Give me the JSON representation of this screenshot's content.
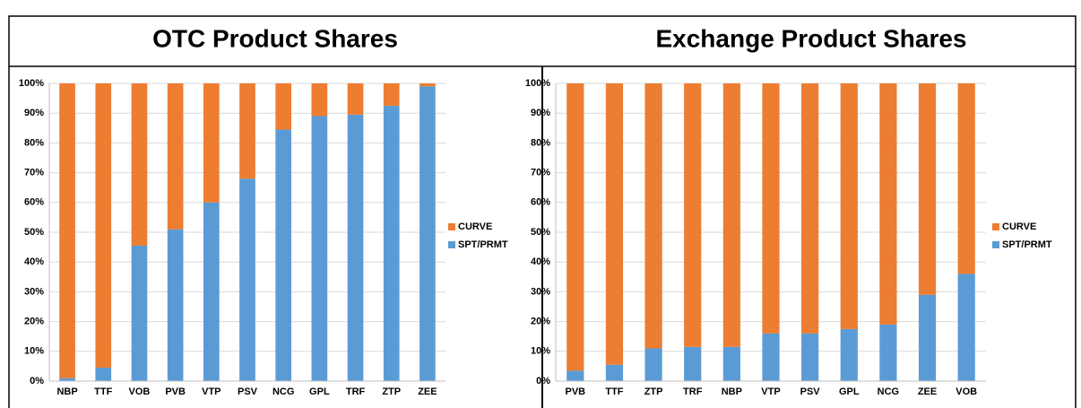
{
  "chart_data": [
    {
      "type": "stacked-bar",
      "title": "OTC Product Shares",
      "categories": [
        "NBP",
        "TTF",
        "VOB",
        "PVB",
        "VTP",
        "PSV",
        "NCG",
        "GPL",
        "TRF",
        "ZTP",
        "ZEE"
      ],
      "series": [
        {
          "name": "SPT/PRMT",
          "color": "#5b9bd5",
          "values": [
            1,
            4.5,
            45.5,
            51,
            60,
            68,
            84.5,
            89,
            89.5,
            92.5,
            99
          ]
        },
        {
          "name": "CURVE",
          "color": "#ed7d31",
          "values": [
            99,
            95.5,
            54.5,
            49,
            40,
            32,
            15.5,
            11,
            10.5,
            7.5,
            1
          ]
        }
      ],
      "ylim": [
        0,
        100
      ],
      "yticks": [
        {
          "value": 0,
          "label": "0%"
        },
        {
          "value": 10,
          "label": "10%"
        },
        {
          "value": 20,
          "label": "20%"
        },
        {
          "value": 30,
          "label": "30%"
        },
        {
          "value": 40,
          "label": "40%"
        },
        {
          "value": 50,
          "label": "50%"
        },
        {
          "value": 60,
          "label": "60%"
        },
        {
          "value": 70,
          "label": "70%"
        },
        {
          "value": 80,
          "label": "80%"
        },
        {
          "value": 90,
          "label": "90%"
        },
        {
          "value": 100,
          "label": "100%"
        }
      ],
      "grid": true,
      "legend": "right"
    },
    {
      "type": "stacked-bar",
      "title": "Exchange Product Shares",
      "categories": [
        "PVB",
        "TTF",
        "ZTP",
        "TRF",
        "NBP",
        "VTP",
        "PSV",
        "GPL",
        "NCG",
        "ZEE",
        "VOB"
      ],
      "series": [
        {
          "name": "SPT/PRMT",
          "color": "#5b9bd5",
          "values": [
            3.5,
            5.5,
            11,
            11.5,
            11.5,
            16,
            16,
            17.5,
            19,
            29,
            36
          ]
        },
        {
          "name": "CURVE",
          "color": "#ed7d31",
          "values": [
            96.5,
            94.5,
            89,
            88.5,
            88.5,
            84,
            84,
            82.5,
            81,
            71,
            64
          ]
        }
      ],
      "ylim": [
        0,
        100
      ],
      "yticks": [
        {
          "value": 0,
          "label": "0%"
        },
        {
          "value": 10,
          "label": "10%"
        },
        {
          "value": 20,
          "label": "20%"
        },
        {
          "value": 30,
          "label": "30%"
        },
        {
          "value": 40,
          "label": "40%"
        },
        {
          "value": 50,
          "label": "50%"
        },
        {
          "value": 60,
          "label": "60%"
        },
        {
          "value": 70,
          "label": "70%"
        },
        {
          "value": 80,
          "label": "80%"
        },
        {
          "value": 90,
          "label": "90%"
        },
        {
          "value": 100,
          "label": "100%"
        }
      ],
      "grid": true,
      "legend": "right"
    }
  ]
}
